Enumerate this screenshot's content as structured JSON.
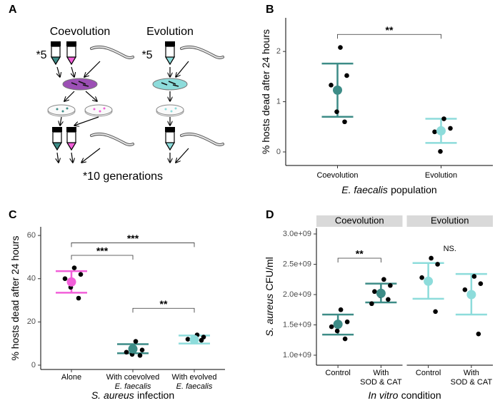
{
  "diagram": {
    "label": "A",
    "titles": [
      "Coevolution",
      "Evolution"
    ],
    "multipliers": [
      "*5",
      "*5"
    ],
    "footnote": "*10 generations"
  },
  "chart_data": [
    {
      "type": "dotplot",
      "label": "B",
      "ylabel": "% hosts dead after 24 hours",
      "xlabel": [
        {
          "text": "E. faecalis",
          "style": "italic"
        },
        "population"
      ],
      "ylim": [
        -0.27,
        2.67
      ],
      "yticks": [
        0,
        1,
        2
      ],
      "annotations": [
        "**"
      ],
      "facets": [
        {
          "groups": [
            {
              "category": [
                "Coevolution"
              ],
              "color": "#3d8c87",
              "mean": 1.23,
              "ci": [
                0.7,
                1.76
              ],
              "points": [
                2.08,
                1.52,
                1.33,
                0.8,
                0.6
              ]
            },
            {
              "category": [
                "Evolution"
              ],
              "color": "#8ddcdb",
              "mean": 0.42,
              "ci": [
                0.18,
                0.66
              ],
              "points": [
                0.66,
                0.47,
                0.4,
                0.01
              ]
            }
          ]
        }
      ]
    },
    {
      "type": "dotplot",
      "label": "C",
      "ylabel": "% hosts dead after 24 hours",
      "xlabel": [
        {
          "text": "S. aureus",
          "style": "italic"
        },
        "infection"
      ],
      "ylim": [
        -2,
        64
      ],
      "yticks": [
        0,
        20,
        40,
        60
      ],
      "annotations": [
        "***",
        "***",
        "**"
      ],
      "facets": [
        {
          "groups": [
            {
              "category": [
                "Alone"
              ],
              "color": "#f25fd9",
              "mean": 38.5,
              "ci": [
                33.5,
                43.5
              ],
              "points": [
                45,
                42,
                40,
                36,
                31
              ]
            },
            {
              "category": [
                "With coevolved",
                {
                  "text": "E. faecalis",
                  "style": "italic"
                }
              ],
              "color": "#3d8c87",
              "mean": 7.5,
              "ci": [
                5.5,
                9.7
              ],
              "points": [
                11,
                7,
                6,
                5,
                4.5
              ]
            },
            {
              "category": [
                "With evolved",
                {
                  "text": "E. faecalis",
                  "style": "italic"
                }
              ],
              "color": "#8ddcdb",
              "mean": 11.8,
              "ci": [
                10,
                13.7
              ],
              "points": [
                14,
                13,
                12,
                11,
                11.5
              ]
            }
          ]
        }
      ]
    },
    {
      "type": "dotplot",
      "label": "D",
      "ylabel": [
        {
          "text": "S. aureus",
          "style": "italic"
        },
        "CFU/ml"
      ],
      "xlabel": [
        {
          "text": "In vitro",
          "style": "italic"
        },
        "condition"
      ],
      "ylim": [
        835000000,
        3094000000
      ],
      "yticks": [
        {
          "value": 1000000000,
          "label": "1.0e+09"
        },
        {
          "value": 1500000000,
          "label": "1.5e+09"
        },
        {
          "value": 2000000000,
          "label": "2.0e+09"
        },
        {
          "value": 2500000000,
          "label": "2.5e+09"
        },
        {
          "value": 3000000000,
          "label": "3.0e+09"
        }
      ],
      "annotations": [
        "**",
        "NS."
      ],
      "facets": [
        {
          "title": "Coevolution",
          "groups": [
            {
              "category": [
                "Control"
              ],
              "color": "#3d8c87",
              "mean": 1510000000,
              "ci": [
                1340000000,
                1670000000
              ],
              "points": [
                1750000000,
                1550000000,
                1470000000,
                1400000000,
                1270000000
              ]
            },
            {
              "category": [
                "With",
                "SOD & CAT"
              ],
              "color": "#3d8c87",
              "mean": 2020000000,
              "ci": [
                1870000000,
                2180000000
              ],
              "points": [
                2250000000,
                2150000000,
                2050000000,
                1980000000,
                1920000000,
                1850000000
              ]
            }
          ]
        },
        {
          "title": "Evolution",
          "groups": [
            {
              "category": [
                "Control"
              ],
              "color": "#8ddcdb",
              "mean": 2220000000,
              "ci": [
                1930000000,
                2520000000
              ],
              "points": [
                2600000000,
                2500000000,
                2280000000,
                2220000000,
                1720000000
              ]
            },
            {
              "category": [
                "With",
                "SOD & CAT"
              ],
              "color": "#8ddcdb",
              "mean": 2000000000,
              "ci": [
                1670000000,
                2340000000
              ],
              "points": [
                2300000000,
                2180000000,
                2080000000,
                2020000000,
                1350000000
              ]
            }
          ]
        }
      ]
    }
  ]
}
